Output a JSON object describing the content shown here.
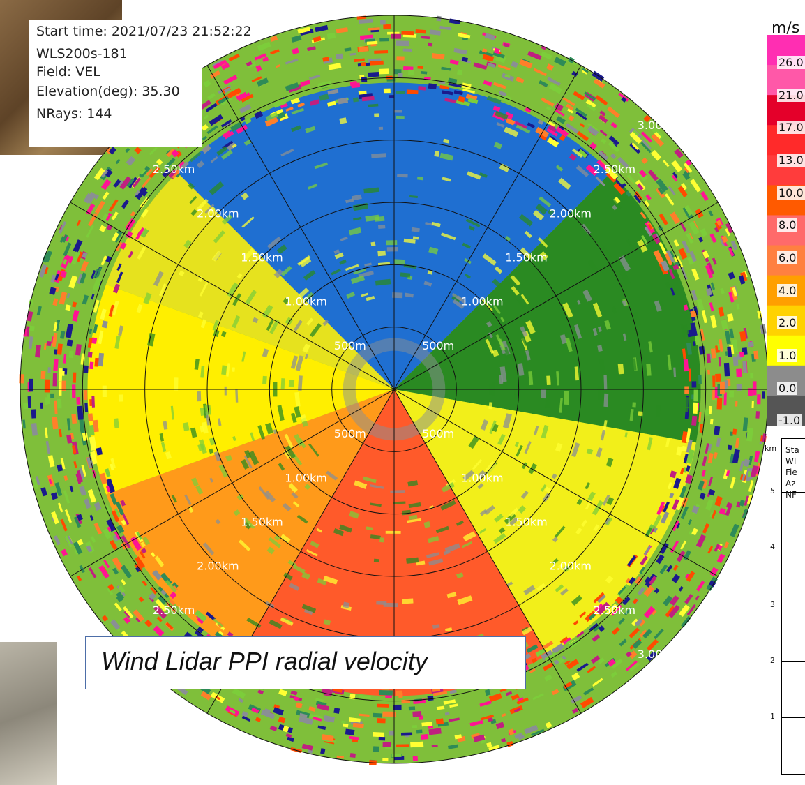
{
  "info": {
    "start_time": "Start time: 2021/07/23 21:52:22",
    "instrument": "WLS200s-181",
    "field": "Field: VEL",
    "elevation": "Elevation(deg): 35.30",
    "nrays": "NRays: 144"
  },
  "caption": "Wind Lidar PPI radial velocity",
  "colorbar": {
    "unit": "m/s",
    "ticks": [
      "26.0",
      "21.0",
      "17.0",
      "13.0",
      "10.0",
      "8.0",
      "6.0",
      "4.0",
      "2.0",
      "1.0",
      "0.0",
      "-1.0"
    ],
    "colors": [
      "#ff2eb2",
      "#ff58a8",
      "#e4002a",
      "#ff2a2a",
      "#ff3c3c",
      "#ff5a00",
      "#ff6a6a",
      "#ff8040",
      "#ff9f00",
      "#ffd200",
      "#ffff00",
      "#8c8c8c",
      "#555555"
    ]
  },
  "side_panel": {
    "unit": "km",
    "y_ticks": [
      "5",
      "4",
      "3",
      "2",
      "1"
    ],
    "text_lines": [
      "Sta",
      "WI",
      "Fie",
      "Az",
      "NF"
    ]
  },
  "chart_data": {
    "type": "ppi",
    "title": "",
    "field": "VEL",
    "range_rings_km": [
      0.5,
      1.0,
      1.5,
      2.0,
      2.5,
      3.0
    ],
    "ring_labels": [
      "500m",
      "1.00km",
      "1.50km",
      "2.00km",
      "2.50km",
      "3.00km"
    ],
    "max_range_km": 3.0,
    "azimuth_lines_deg": [
      0,
      30,
      60,
      90,
      120,
      150,
      180,
      210,
      240,
      270,
      300,
      330
    ],
    "sectors": [
      {
        "from_deg": 315,
        "to_deg": 45,
        "value_ms": -9.0,
        "label": "blue"
      },
      {
        "from_deg": 45,
        "to_deg": 100,
        "value_ms": -5.0,
        "label": "dark green"
      },
      {
        "from_deg": 100,
        "to_deg": 150,
        "value_ms": 1.5,
        "label": "yellow/grey"
      },
      {
        "from_deg": 150,
        "to_deg": 210,
        "value_ms": 12.0,
        "label": "red-orange"
      },
      {
        "from_deg": 210,
        "to_deg": 250,
        "value_ms": 8.0,
        "label": "orange"
      },
      {
        "from_deg": 250,
        "to_deg": 290,
        "value_ms": 3.0,
        "label": "yellow"
      },
      {
        "from_deg": 290,
        "to_deg": 315,
        "value_ms": 3.0,
        "label": "yellow/green"
      }
    ],
    "sector_colors": {
      "blue": "#1f6fd1",
      "dark green": "#2a8a22",
      "yellow/grey": "#f2ef1a",
      "red-orange": "#ff5a2a",
      "orange": "#ff9a1a",
      "yellow": "#ffef00",
      "yellow/green": "#e6e21e"
    },
    "outer_noise_colors": [
      "#ff1493",
      "#ff7f2a",
      "#ffff33",
      "#7ccd3a",
      "#8a8f94",
      "#1a1a8c",
      "#c02080",
      "#ff4a00",
      "#2e8b57"
    ]
  }
}
